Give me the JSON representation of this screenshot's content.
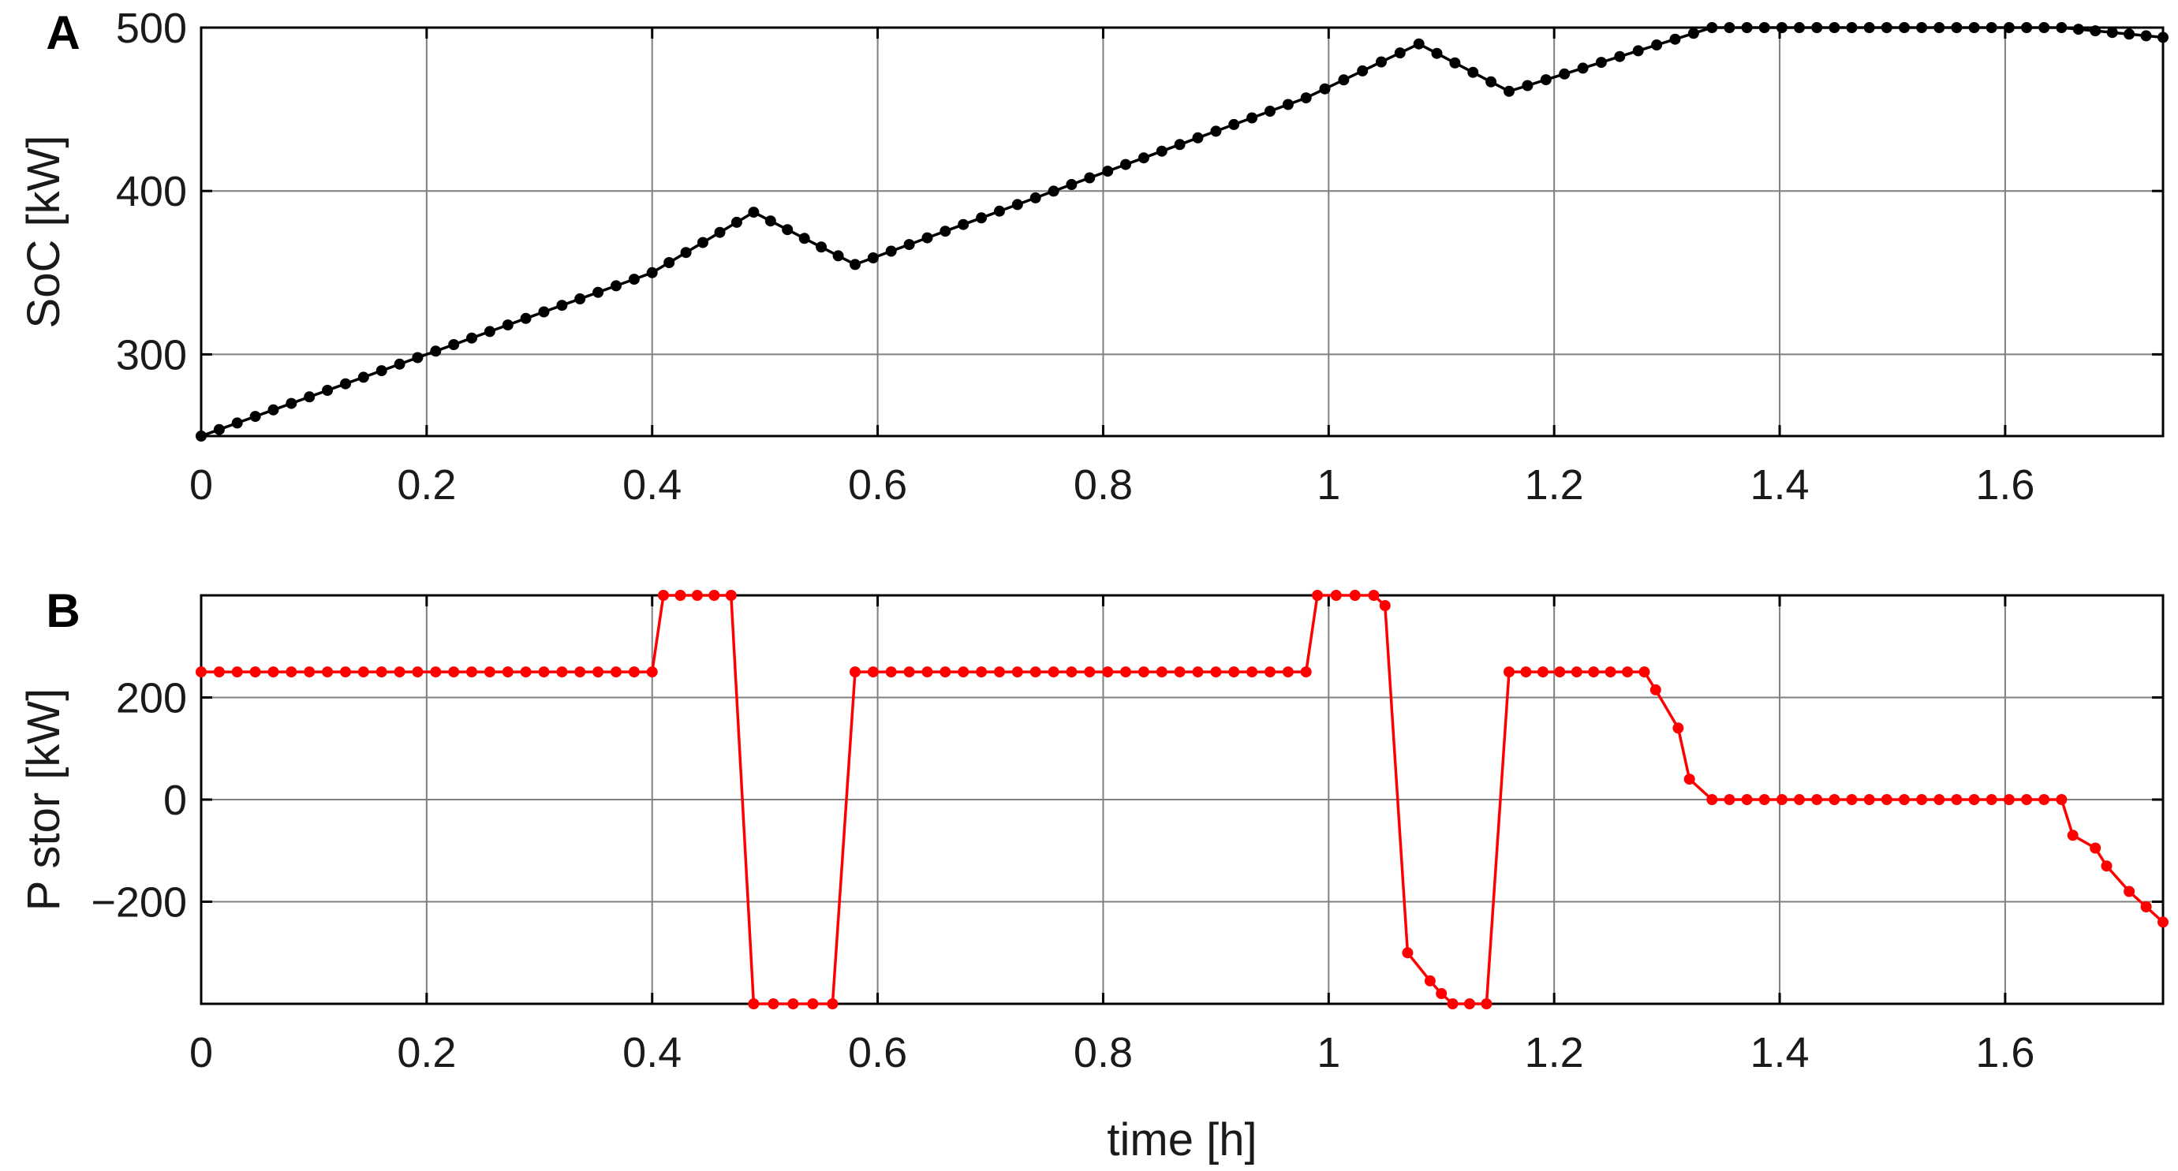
{
  "chart_data": [
    {
      "panel_label": "A",
      "type": "line",
      "xlabel": "",
      "ylabel": "SoC [kW]",
      "xlim": [
        0,
        1.74
      ],
      "ylim": [
        250,
        500
      ],
      "xticks": [
        0,
        0.2,
        0.4,
        0.6,
        0.8,
        1,
        1.2,
        1.4,
        1.6
      ],
      "xtick_labels": [
        "0",
        "0.2",
        "0.4",
        "0.6",
        "0.8",
        "1",
        "1.2",
        "1.4",
        "1.6"
      ],
      "yticks": [
        300,
        400,
        500
      ],
      "ytick_labels": [
        "300",
        "400",
        "500"
      ],
      "grid": true,
      "color": "#000000",
      "markers": true,
      "series": [
        {
          "x": [
            0,
            0.4,
            0.49,
            0.58,
            0.98,
            1.08,
            1.16,
            1.34,
            1.65,
            1.74
          ],
          "y": [
            250,
            350,
            387,
            355,
            457,
            490,
            461,
            500,
            500,
            494
          ]
        }
      ]
    },
    {
      "panel_label": "B",
      "type": "line",
      "xlabel": "time [h]",
      "ylabel": "P stor [kW]",
      "xlim": [
        0,
        1.74
      ],
      "ylim": [
        -400,
        400
      ],
      "xticks": [
        0,
        0.2,
        0.4,
        0.6,
        0.8,
        1,
        1.2,
        1.4,
        1.6
      ],
      "xtick_labels": [
        "0",
        "0.2",
        "0.4",
        "0.6",
        "0.8",
        "1",
        "1.2",
        "1.4",
        "1.6"
      ],
      "yticks": [
        -200,
        0,
        200
      ],
      "ytick_labels": [
        "−200",
        "0",
        "200"
      ],
      "grid": true,
      "color": "#ff0000",
      "markers": true,
      "series": [
        {
          "x": [
            0,
            0.4,
            0.41,
            0.47,
            0.49,
            0.56,
            0.58,
            0.98,
            0.99,
            1.04,
            1.05,
            1.07,
            1.09,
            1.1,
            1.11,
            1.14,
            1.16,
            1.28,
            1.29,
            1.31,
            1.32,
            1.34,
            1.65,
            1.66,
            1.68,
            1.69,
            1.71,
            1.74
          ],
          "y": [
            250,
            250,
            400,
            400,
            -400,
            -400,
            250,
            250,
            400,
            400,
            380,
            -300,
            -355,
            -380,
            -400,
            -400,
            250,
            250,
            215,
            140,
            40,
            0,
            0,
            -70,
            -95,
            -130,
            -180,
            -240
          ]
        }
      ]
    }
  ]
}
